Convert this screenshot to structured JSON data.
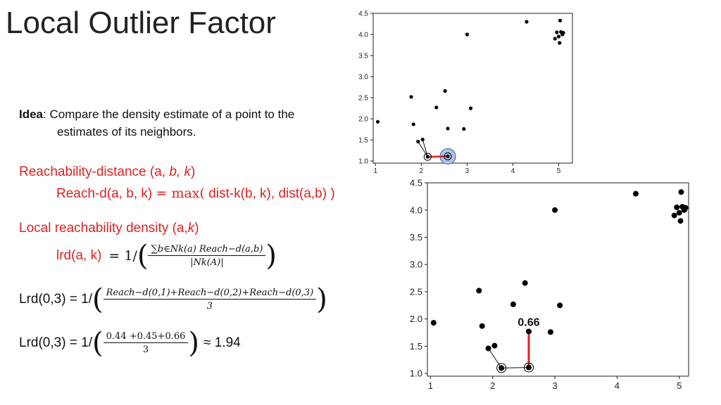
{
  "slide": {
    "title": "Local Outlier Factor",
    "idea_lead": "Idea",
    "idea_text": ": Compare the density estimate of a point to the",
    "idea_text2": "estimates of its neighbors.",
    "reach_title_plain": "Reachability-distance (a, ",
    "reach_title_b": "b, k",
    "reach_title_end": ")",
    "reach_lhs": "Reach-d(a, b, k) ",
    "reach_eq": "=",
    "reach_max": " max(",
    "reach_rhs": " dist-k(b, k), dist(a,b) )",
    "lrd_title_plain": "Local reachability density (a,",
    "lrd_title_k": "k",
    "lrd_title_end": ")",
    "lrd_lhs": "lrd(a, k)",
    "lrd_eq": "= 1/",
    "lrd_num": "∑b∈Nk(a) Reach−d(a,b)",
    "lrd_den": "|Nk(A)|",
    "lrd03_lhs": "Lrd(0,3) = 1/",
    "lrd03_num": "Reach−d(0,1)+Reach−d(0,2)+Reach−d(0,3)",
    "lrd03_den": "3",
    "lrd03b_lhs": "Lrd(0,3) = 1/",
    "lrd03b_num": "0.44 +0.45+0.66",
    "lrd03b_den": "3",
    "lrd03b_result": "≈ 1.94"
  },
  "chart_data": [
    {
      "type": "scatter",
      "title": "",
      "xlabel": "",
      "ylabel": "",
      "xlim": [
        0.95,
        5.3
      ],
      "ylim": [
        0.95,
        4.5
      ],
      "xticks": [
        1,
        2,
        3,
        4,
        5
      ],
      "yticks": [
        1.0,
        1.5,
        2.0,
        2.5,
        3.0,
        3.5,
        4.0,
        4.5
      ],
      "ytick_labels": [
        "1.0",
        "1.5",
        "2.0",
        "2.5",
        "3.0",
        "3.5",
        "4.0",
        "4.5"
      ],
      "points": [
        [
          1.05,
          1.93
        ],
        [
          1.78,
          2.52
        ],
        [
          1.83,
          1.87
        ],
        [
          1.93,
          1.46
        ],
        [
          2.03,
          1.51
        ],
        [
          2.14,
          1.1
        ],
        [
          2.58,
          1.11
        ],
        [
          2.33,
          2.27
        ],
        [
          2.52,
          2.66
        ],
        [
          2.58,
          1.77
        ],
        [
          2.93,
          1.76
        ],
        [
          3.0,
          4.0
        ],
        [
          3.08,
          2.25
        ],
        [
          4.3,
          4.3
        ],
        [
          5.03,
          4.33
        ],
        [
          4.96,
          4.05
        ],
        [
          5.05,
          4.06
        ],
        [
          5.1,
          4.04
        ],
        [
          5.08,
          4.0
        ],
        [
          4.92,
          3.9
        ],
        [
          5.0,
          3.95
        ],
        [
          5.02,
          3.8
        ]
      ],
      "focus_point": [
        2.58,
        1.11
      ],
      "neighbor_point": [
        2.14,
        1.1
      ],
      "neighbor_lines_from": [
        2.14,
        1.1
      ],
      "neighbor_lines_to": [
        [
          1.93,
          1.46
        ],
        [
          2.03,
          1.51
        ]
      ],
      "highlight_circle": true,
      "annotation": ""
    },
    {
      "type": "scatter",
      "title": "",
      "xlabel": "",
      "ylabel": "",
      "xlim": [
        0.95,
        5.15
      ],
      "ylim": [
        0.95,
        4.5
      ],
      "xticks": [
        1,
        2,
        3,
        4,
        5
      ],
      "yticks": [
        1.0,
        1.5,
        2.0,
        2.5,
        3.0,
        3.5,
        4.0,
        4.5
      ],
      "ytick_labels": [
        "1.0",
        "1.5",
        "2.0",
        "2.5",
        "3.0",
        "3.5",
        "4.0",
        "4.5"
      ],
      "points": [
        [
          1.05,
          1.93
        ],
        [
          1.78,
          2.52
        ],
        [
          1.83,
          1.87
        ],
        [
          1.93,
          1.46
        ],
        [
          2.03,
          1.51
        ],
        [
          2.14,
          1.1
        ],
        [
          2.58,
          1.11
        ],
        [
          2.33,
          2.27
        ],
        [
          2.52,
          2.66
        ],
        [
          2.58,
          1.77
        ],
        [
          2.93,
          1.76
        ],
        [
          3.0,
          4.0
        ],
        [
          3.08,
          2.25
        ],
        [
          4.3,
          4.3
        ],
        [
          5.03,
          4.33
        ],
        [
          4.96,
          4.05
        ],
        [
          5.05,
          4.06
        ],
        [
          5.1,
          4.04
        ],
        [
          5.08,
          4.0
        ],
        [
          4.92,
          3.9
        ],
        [
          5.0,
          3.95
        ],
        [
          5.02,
          3.8
        ]
      ],
      "focus_point": [
        2.58,
        1.11
      ],
      "neighbor_point": [
        2.14,
        1.1
      ],
      "neighbor_lines_from": [
        2.14,
        1.1
      ],
      "neighbor_lines_to": [
        [
          1.93,
          1.46
        ]
      ],
      "highlight_circle": false,
      "red_line_to": [
        2.58,
        1.77
      ],
      "annotation": "0.66"
    }
  ],
  "colors": {
    "red": "#e02020",
    "highlight_fill": "#aec3ec",
    "highlight_stroke": "#3b57b4"
  }
}
